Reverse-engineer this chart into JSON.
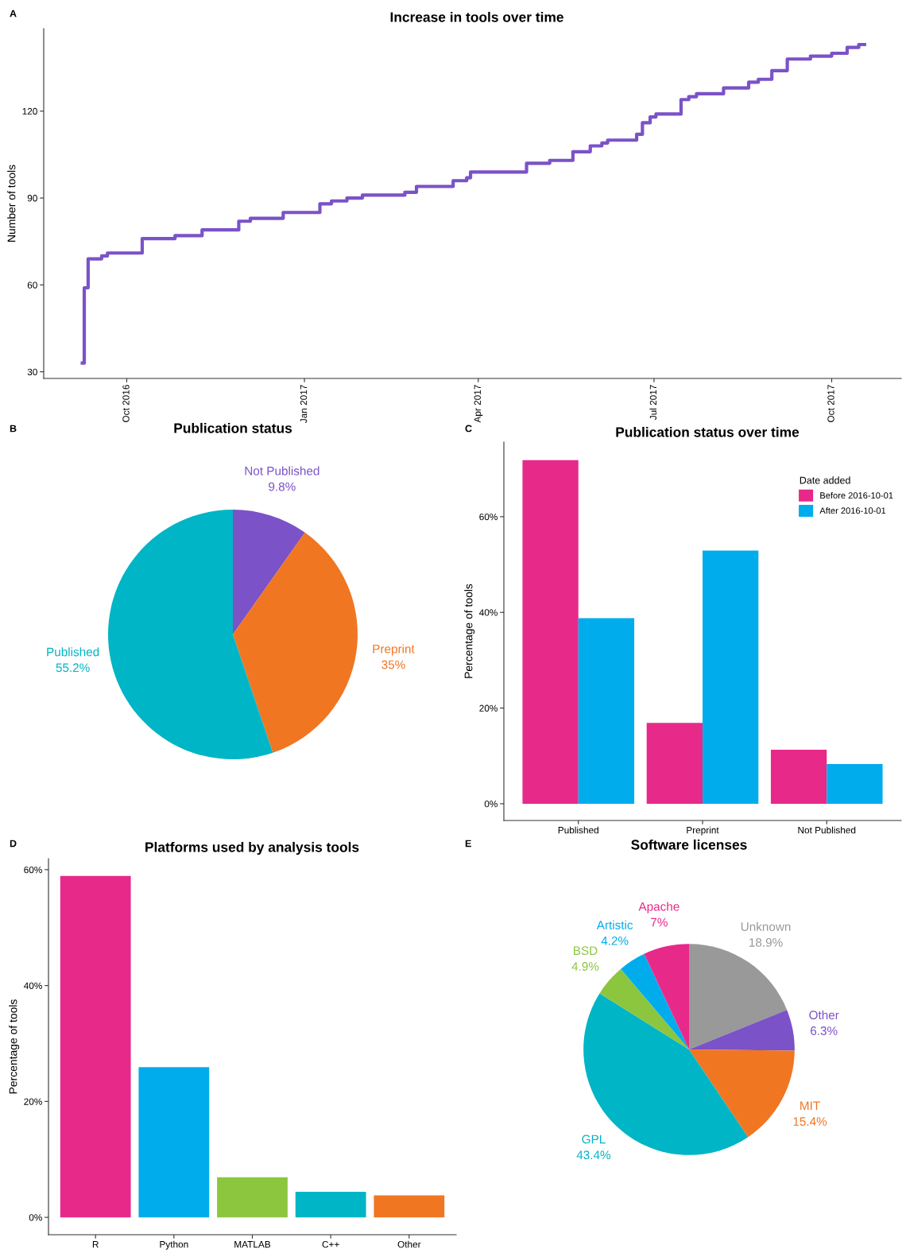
{
  "chart_data": [
    {
      "type": "step",
      "title": "Increase in tools over time",
      "ylabel": "Number of tools",
      "annotations": [
        "A"
      ],
      "x": [
        "2016-09-08",
        "2016-09-09",
        "2016-09-11",
        "2016-09-18",
        "2016-09-21",
        "2016-10-09",
        "2016-10-26",
        "2016-11-09",
        "2016-11-28",
        "2016-12-04",
        "2016-12-21",
        "2017-01-09",
        "2017-01-15",
        "2017-01-23",
        "2017-01-31",
        "2017-02-22",
        "2017-02-28",
        "2017-03-19",
        "2017-03-26",
        "2017-03-28",
        "2017-04-26",
        "2017-05-08",
        "2017-05-20",
        "2017-05-29",
        "2017-06-04",
        "2017-06-07",
        "2017-06-22",
        "2017-06-25",
        "2017-06-29",
        "2017-07-02",
        "2017-07-15",
        "2017-07-19",
        "2017-07-23",
        "2017-08-06",
        "2017-08-19",
        "2017-08-24",
        "2017-08-31",
        "2017-09-08",
        "2017-09-20",
        "2017-10-01",
        "2017-10-09",
        "2017-10-15",
        "2017-10-18"
      ],
      "series": [
        {
          "color": "#7b52c7",
          "values": [
            33,
            59,
            69,
            70,
            71,
            76,
            77,
            79,
            82,
            83,
            85,
            88,
            89,
            90,
            91,
            92,
            94,
            96,
            97,
            99,
            102,
            103,
            106,
            108,
            109,
            110,
            112,
            116,
            118,
            119,
            124,
            125,
            126,
            128,
            130,
            131,
            134,
            138,
            139,
            140,
            142,
            143,
            143
          ]
        }
      ],
      "xlim": [
        "2016-08-19",
        "2017-11-06"
      ],
      "xticks": [
        {
          "value": "2016-10-01",
          "label": "Oct 2016"
        },
        {
          "value": "2017-01-01",
          "label": "Jan 2017"
        },
        {
          "value": "2017-04-01",
          "label": "Apr 2017"
        },
        {
          "value": "2017-07-01",
          "label": "Jul 2017"
        },
        {
          "value": "2017-10-01",
          "label": "Oct 2017"
        }
      ],
      "ylim": [
        27.7,
        148.5
      ],
      "yticks": [
        30,
        60,
        90,
        120
      ],
      "grid": false
    },
    {
      "type": "pie",
      "title": "Publication status",
      "annotations": [
        "B"
      ],
      "categories": [
        "Not Published",
        "Preprint",
        "Published"
      ],
      "values": [
        9.8,
        35,
        55.2
      ],
      "value_labels": [
        "9.8%",
        "35%",
        "55.2%"
      ],
      "colors": [
        "#7b52c7",
        "#f07622",
        "#00b5c5"
      ]
    },
    {
      "type": "bar",
      "title": "Publication status over time",
      "ylabel": "Percentage of tools",
      "annotations": [
        "C"
      ],
      "categories": [
        "Published",
        "Preprint",
        "Not Published"
      ],
      "legend_title": "Date added",
      "legend": "top right",
      "series": [
        {
          "name": "Before 2016-10-01",
          "color": "#e7298a",
          "values": [
            71.8,
            16.9,
            11.3
          ]
        },
        {
          "name": "After 2016-10-01",
          "color": "#00acec",
          "values": [
            38.8,
            52.9,
            8.3
          ]
        }
      ],
      "ylim": [
        -3.5,
        75.6
      ],
      "yticks": [
        {
          "value": 0,
          "label": "0%"
        },
        {
          "value": 20,
          "label": "20%"
        },
        {
          "value": 40,
          "label": "40%"
        },
        {
          "value": 60,
          "label": "60%"
        }
      ],
      "grid": false
    },
    {
      "type": "bar",
      "title": "Platforms used by analysis tools",
      "ylabel": "Percentage of tools",
      "annotations": [
        "D"
      ],
      "categories": [
        "R",
        "Python",
        "MATLAB",
        "C++",
        "Other"
      ],
      "values": [
        58.9,
        25.9,
        6.9,
        4.4,
        3.8
      ],
      "colors": [
        "#e7298a",
        "#00acec",
        "#8cc63f",
        "#00b5c5",
        "#f07622"
      ],
      "ylim": [
        -3.0,
        61.9
      ],
      "yticks": [
        {
          "value": 0,
          "label": "0%"
        },
        {
          "value": 20,
          "label": "20%"
        },
        {
          "value": 40,
          "label": "40%"
        },
        {
          "value": 60,
          "label": "60%"
        }
      ],
      "grid": false
    },
    {
      "type": "pie",
      "title": "Software licenses",
      "annotations": [
        "E"
      ],
      "categories": [
        "Unknown",
        "Other",
        "MIT",
        "GPL",
        "BSD",
        "Artistic",
        "Apache"
      ],
      "values": [
        18.9,
        6.3,
        15.4,
        43.4,
        4.9,
        4.2,
        7
      ],
      "value_labels": [
        "18.9%",
        "6.3%",
        "15.4%",
        "43.4%",
        "4.9%",
        "4.2%",
        "7%"
      ],
      "colors": [
        "#999999",
        "#7b52c7",
        "#f07622",
        "#00b5c5",
        "#8cc63f",
        "#00acec",
        "#e7298a"
      ]
    }
  ]
}
